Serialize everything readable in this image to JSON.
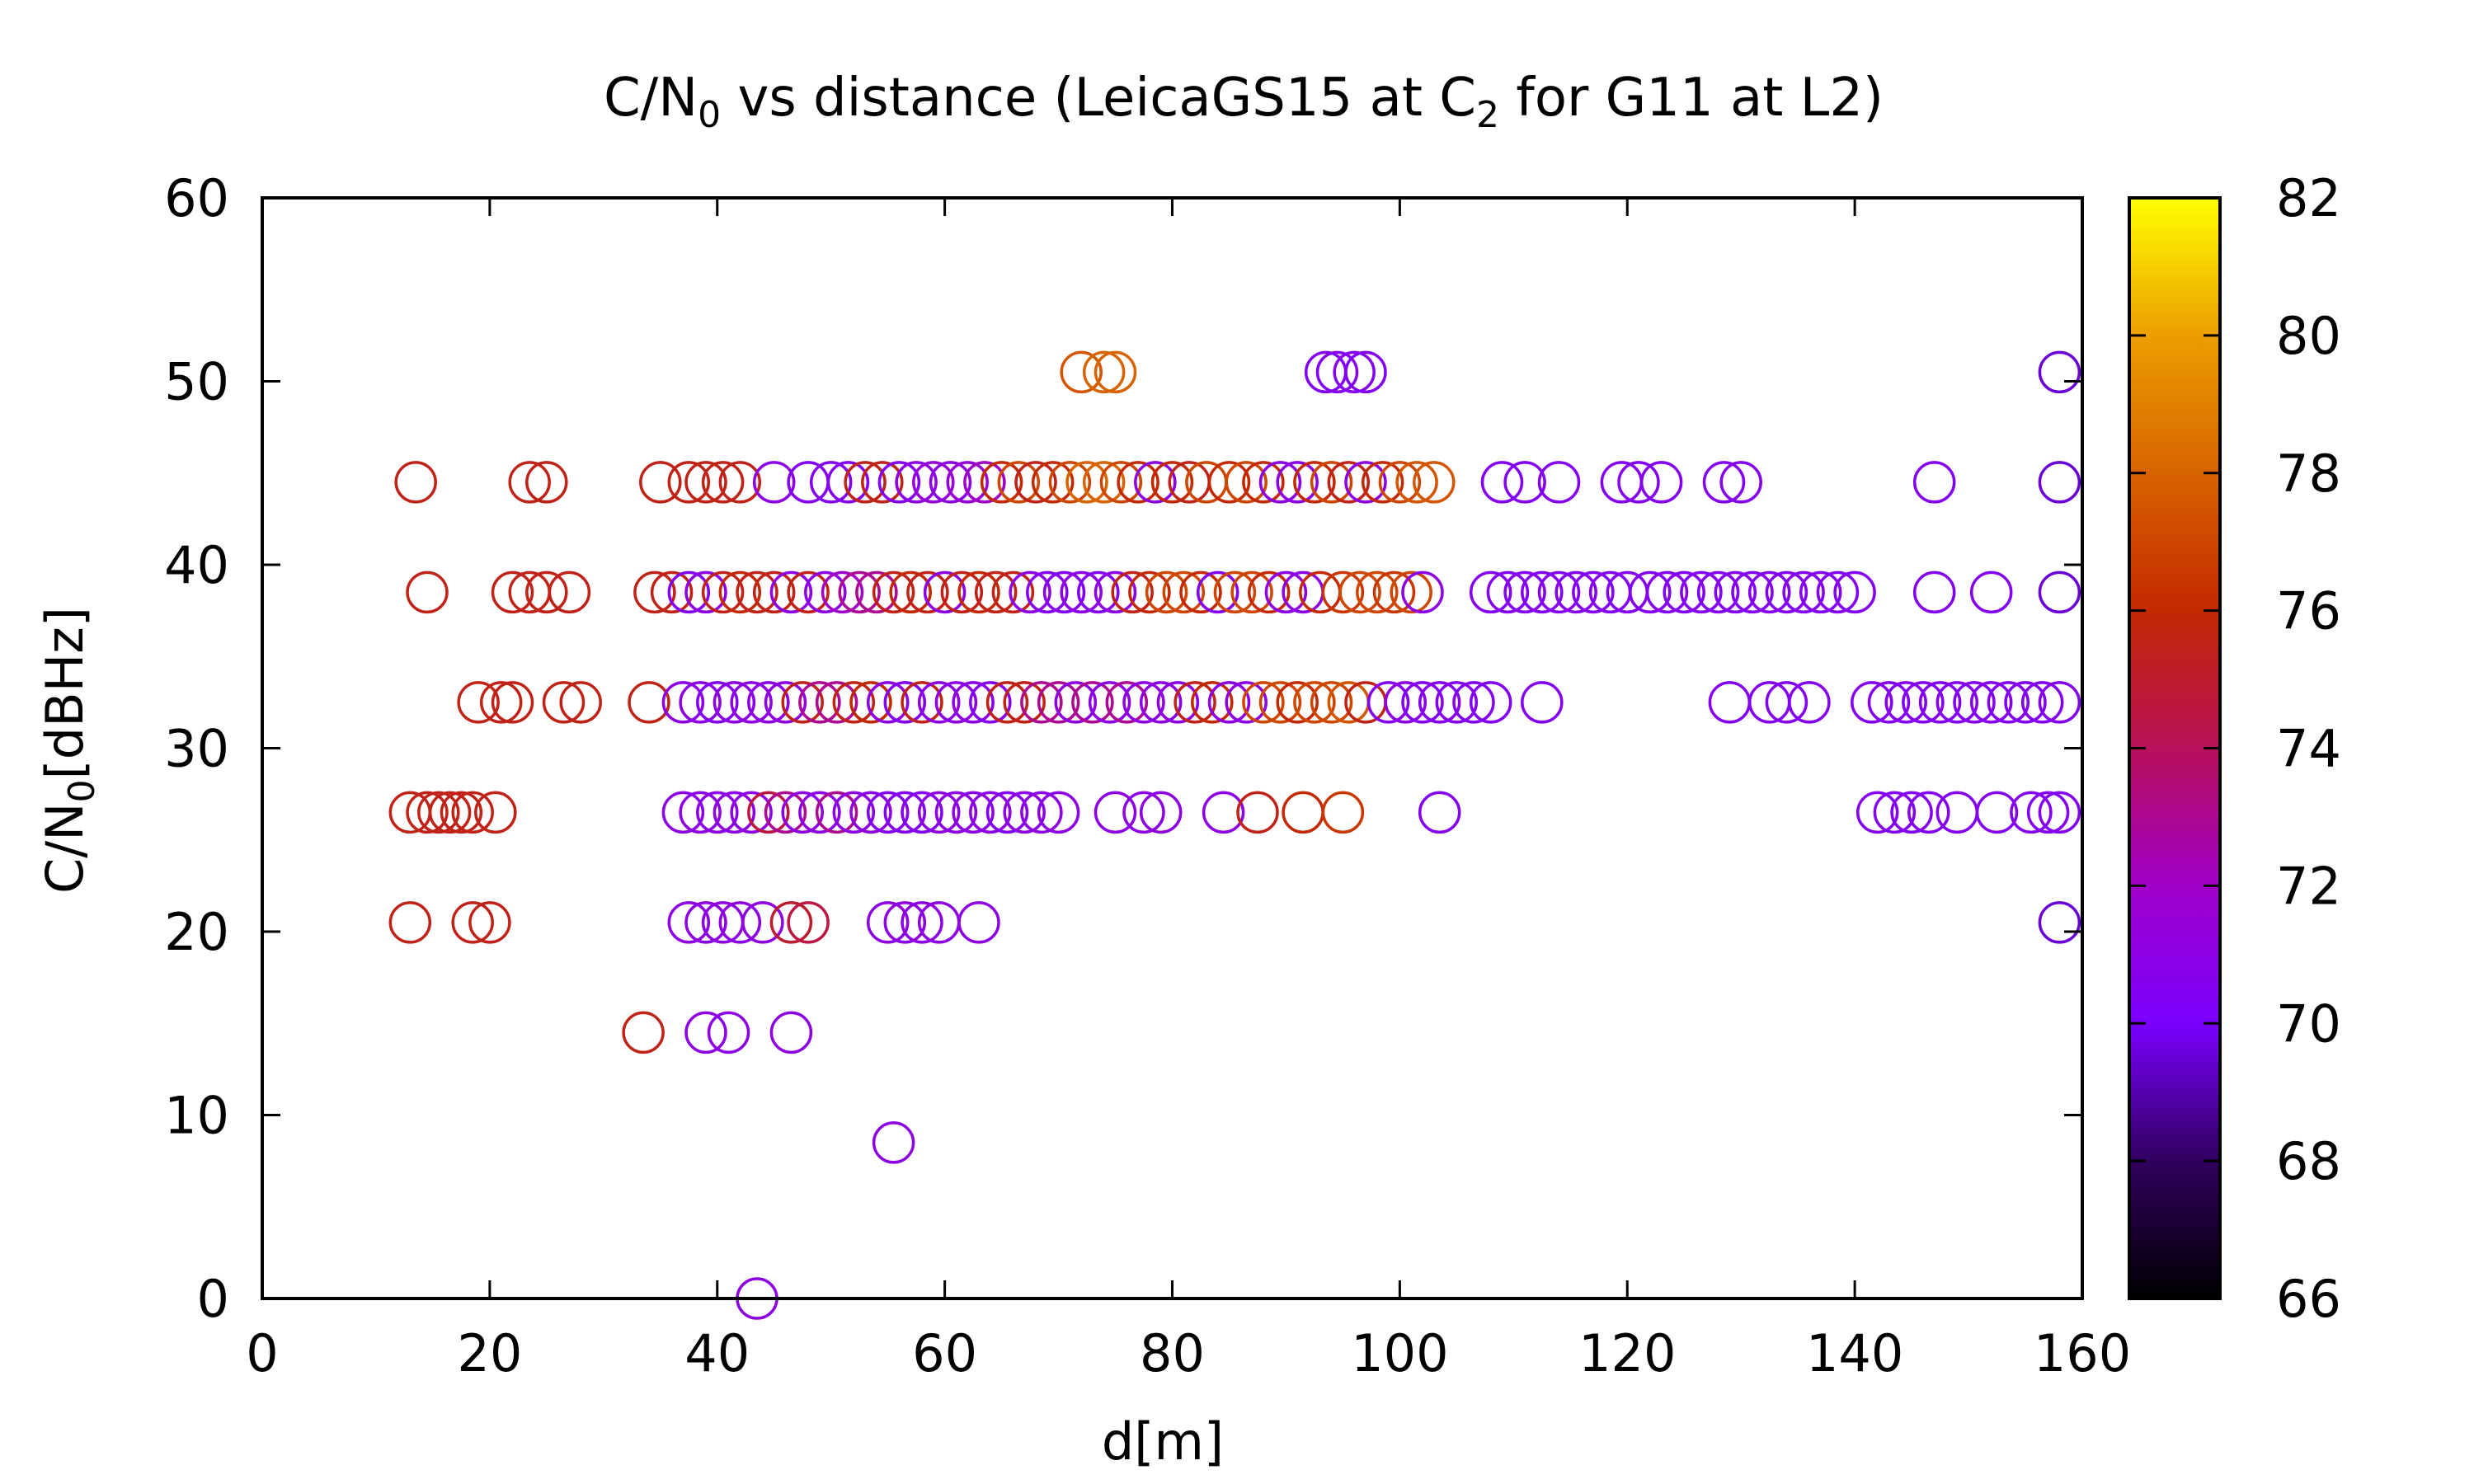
{
  "chart_data": {
    "type": "scatter",
    "title": {
      "pre": "C/N",
      "sub": "0",
      "mid": " vs distance (LeicaGS15 at C",
      "sub2": "2",
      "post": " for G11 at L2)"
    },
    "xlabel": "d[m]",
    "ylabel": {
      "pre": "C/N",
      "sub": "0",
      "post": "[dBHz]"
    },
    "xlim": [
      0,
      160
    ],
    "ylim": [
      0,
      60
    ],
    "xticks": [
      0,
      20,
      40,
      60,
      80,
      100,
      120,
      140,
      160
    ],
    "yticks": [
      0,
      10,
      20,
      30,
      40,
      50,
      60
    ],
    "colorbar": {
      "range": [
        66,
        82
      ],
      "ticks": [
        66,
        68,
        70,
        72,
        74,
        76,
        78,
        80,
        82
      ]
    },
    "marker": "open-circle",
    "grid": false,
    "points": [
      [
        13.5,
        44.5,
        75.5
      ],
      [
        23.5,
        44.5,
        75.5
      ],
      [
        25,
        44.5,
        75.5
      ],
      [
        35,
        44.5,
        75.5
      ],
      [
        37.5,
        44.5,
        75.5
      ],
      [
        39,
        44.5,
        75.5
      ],
      [
        40.5,
        44.5,
        75.5
      ],
      [
        42,
        44.5,
        75.5
      ],
      [
        45,
        44.5,
        71
      ],
      [
        48,
        44.5,
        70.5
      ],
      [
        50,
        44.5,
        70.5
      ],
      [
        51.5,
        44.5,
        70.5
      ],
      [
        53,
        44.5,
        75.5
      ],
      [
        54.5,
        44.5,
        75.5
      ],
      [
        56,
        44.5,
        70.5
      ],
      [
        57.5,
        44.5,
        71
      ],
      [
        59,
        44.5,
        71.5
      ],
      [
        60.5,
        44.5,
        71
      ],
      [
        62,
        44.5,
        71.5
      ],
      [
        63.5,
        44.5,
        72
      ],
      [
        65,
        44.5,
        76
      ],
      [
        66.5,
        44.5,
        77
      ],
      [
        68,
        44.5,
        75.5
      ],
      [
        69.5,
        44.5,
        76
      ],
      [
        71,
        44.5,
        77
      ],
      [
        72.5,
        44.5,
        78
      ],
      [
        74,
        44.5,
        78
      ],
      [
        75.5,
        44.5,
        77
      ],
      [
        77,
        44.5,
        76
      ],
      [
        78.5,
        44.5,
        71
      ],
      [
        80,
        44.5,
        76
      ],
      [
        81.5,
        44.5,
        75.5
      ],
      [
        83,
        44.5,
        77
      ],
      [
        85,
        44.5,
        76
      ],
      [
        86.5,
        44.5,
        77
      ],
      [
        88,
        44.5,
        76
      ],
      [
        89.5,
        44.5,
        71
      ],
      [
        91,
        44.5,
        71
      ],
      [
        92.5,
        44.5,
        76
      ],
      [
        94,
        44.5,
        77
      ],
      [
        95.5,
        44.5,
        75.5
      ],
      [
        97,
        44.5,
        71
      ],
      [
        98.5,
        44.5,
        76
      ],
      [
        100,
        44.5,
        77
      ],
      [
        101.5,
        44.5,
        77.5
      ],
      [
        103,
        44.5,
        77.5
      ],
      [
        109,
        44.5,
        70.5
      ],
      [
        111,
        44.5,
        70.5
      ],
      [
        114,
        44.5,
        70.5
      ],
      [
        119.5,
        44.5,
        70.5
      ],
      [
        121,
        44.5,
        70.5
      ],
      [
        123,
        44.5,
        70.5
      ],
      [
        128.5,
        44.5,
        70.5
      ],
      [
        130,
        44.5,
        70.5
      ],
      [
        147,
        44.5,
        70.5
      ],
      [
        158,
        44.5,
        69.5
      ],
      [
        14.5,
        38.5,
        75.5
      ],
      [
        22,
        38.5,
        75.5
      ],
      [
        23.5,
        38.5,
        75.5
      ],
      [
        25,
        38.5,
        75.5
      ],
      [
        27,
        38.5,
        75.5
      ],
      [
        34.5,
        38.5,
        75.5
      ],
      [
        36,
        38.5,
        75.5
      ],
      [
        37.5,
        38.5,
        70.5
      ],
      [
        39,
        38.5,
        71
      ],
      [
        40.5,
        38.5,
        75.5
      ],
      [
        42,
        38.5,
        76
      ],
      [
        43.5,
        38.5,
        75.5
      ],
      [
        45,
        38.5,
        75.5
      ],
      [
        46.5,
        38.5,
        71
      ],
      [
        48,
        38.5,
        75.5
      ],
      [
        49.5,
        38.5,
        71
      ],
      [
        51,
        38.5,
        72
      ],
      [
        52.5,
        38.5,
        73
      ],
      [
        54,
        38.5,
        73
      ],
      [
        55.5,
        38.5,
        75.5
      ],
      [
        57,
        38.5,
        76
      ],
      [
        58.5,
        38.5,
        75.5
      ],
      [
        60,
        38.5,
        71
      ],
      [
        61.5,
        38.5,
        75.5
      ],
      [
        63,
        38.5,
        76
      ],
      [
        64.5,
        38.5,
        75.5
      ],
      [
        66,
        38.5,
        75.5
      ],
      [
        67.5,
        38.5,
        71
      ],
      [
        69,
        38.5,
        70.5
      ],
      [
        70.5,
        38.5,
        70.5
      ],
      [
        72,
        38.5,
        71
      ],
      [
        73.5,
        38.5,
        70.5
      ],
      [
        75,
        38.5,
        71
      ],
      [
        76.5,
        38.5,
        75.5
      ],
      [
        78,
        38.5,
        76
      ],
      [
        79.5,
        38.5,
        77
      ],
      [
        81,
        38.5,
        77
      ],
      [
        82.5,
        38.5,
        76
      ],
      [
        84,
        38.5,
        70.5
      ],
      [
        85.5,
        38.5,
        77
      ],
      [
        87,
        38.5,
        77
      ],
      [
        88.5,
        38.5,
        76
      ],
      [
        90,
        38.5,
        71
      ],
      [
        91.5,
        38.5,
        71
      ],
      [
        93,
        38.5,
        76
      ],
      [
        95,
        38.5,
        76.5
      ],
      [
        96.5,
        38.5,
        77
      ],
      [
        98,
        38.5,
        77
      ],
      [
        99.5,
        38.5,
        76.5
      ],
      [
        101,
        38.5,
        77
      ],
      [
        102,
        38.5,
        71
      ],
      [
        108,
        38.5,
        70.5
      ],
      [
        109.5,
        38.5,
        70.5
      ],
      [
        111,
        38.5,
        70.5
      ],
      [
        112.5,
        38.5,
        70.5
      ],
      [
        114,
        38.5,
        70.5
      ],
      [
        115.5,
        38.5,
        70.5
      ],
      [
        117,
        38.5,
        70.5
      ],
      [
        118.5,
        38.5,
        70.5
      ],
      [
        120,
        38.5,
        70.5
      ],
      [
        122,
        38.5,
        70.5
      ],
      [
        123.5,
        38.5,
        70.5
      ],
      [
        125,
        38.5,
        70.5
      ],
      [
        126.5,
        38.5,
        70.5
      ],
      [
        128,
        38.5,
        70.5
      ],
      [
        129.5,
        38.5,
        70.5
      ],
      [
        131,
        38.5,
        70.5
      ],
      [
        132.5,
        38.5,
        70.5
      ],
      [
        134,
        38.5,
        70.5
      ],
      [
        135.5,
        38.5,
        70.5
      ],
      [
        137,
        38.5,
        70.5
      ],
      [
        138.5,
        38.5,
        70.5
      ],
      [
        140,
        38.5,
        70.5
      ],
      [
        147,
        38.5,
        70.5
      ],
      [
        152,
        38.5,
        70.5
      ],
      [
        158,
        38.5,
        69.5
      ],
      [
        19,
        32.5,
        75.5
      ],
      [
        21,
        32.5,
        75.5
      ],
      [
        22,
        32.5,
        75.5
      ],
      [
        26.5,
        32.5,
        75.5
      ],
      [
        28,
        32.5,
        75.5
      ],
      [
        34,
        32.5,
        75.5
      ],
      [
        37,
        32.5,
        71
      ],
      [
        38.5,
        32.5,
        71
      ],
      [
        40,
        32.5,
        70.5
      ],
      [
        41.5,
        32.5,
        71
      ],
      [
        43,
        32.5,
        71
      ],
      [
        44.5,
        32.5,
        71
      ],
      [
        46,
        32.5,
        71
      ],
      [
        47.5,
        32.5,
        75.5
      ],
      [
        49,
        32.5,
        73
      ],
      [
        50.5,
        32.5,
        73
      ],
      [
        52,
        32.5,
        75.5
      ],
      [
        53.5,
        32.5,
        76
      ],
      [
        55,
        32.5,
        71
      ],
      [
        56.5,
        32.5,
        70.5
      ],
      [
        58,
        32.5,
        75.5
      ],
      [
        59.5,
        32.5,
        71
      ],
      [
        61,
        32.5,
        71
      ],
      [
        62.5,
        32.5,
        71
      ],
      [
        64,
        32.5,
        70.5
      ],
      [
        65.5,
        32.5,
        75.5
      ],
      [
        67,
        32.5,
        75.5
      ],
      [
        68.5,
        32.5,
        73
      ],
      [
        70,
        32.5,
        73
      ],
      [
        71.5,
        32.5,
        71
      ],
      [
        73,
        32.5,
        73
      ],
      [
        74.5,
        32.5,
        71
      ],
      [
        76,
        32.5,
        73
      ],
      [
        77.5,
        32.5,
        71
      ],
      [
        79,
        32.5,
        71
      ],
      [
        80.5,
        32.5,
        71
      ],
      [
        82,
        32.5,
        75.5
      ],
      [
        83.5,
        32.5,
        76
      ],
      [
        85,
        32.5,
        71
      ],
      [
        86.5,
        32.5,
        71
      ],
      [
        88,
        32.5,
        77
      ],
      [
        89.5,
        32.5,
        77
      ],
      [
        91,
        32.5,
        76
      ],
      [
        92.5,
        32.5,
        77
      ],
      [
        94,
        32.5,
        77
      ],
      [
        95.5,
        32.5,
        77.5
      ],
      [
        97,
        32.5,
        75.5
      ],
      [
        99,
        32.5,
        70.5
      ],
      [
        100.5,
        32.5,
        71
      ],
      [
        102,
        32.5,
        70.5
      ],
      [
        103.5,
        32.5,
        70.5
      ],
      [
        105,
        32.5,
        70.5
      ],
      [
        106.5,
        32.5,
        70.5
      ],
      [
        108,
        32.5,
        70.5
      ],
      [
        112.5,
        32.5,
        70.5
      ],
      [
        129,
        32.5,
        70.5
      ],
      [
        132.5,
        32.5,
        70.5
      ],
      [
        134,
        32.5,
        70.5
      ],
      [
        136,
        32.5,
        70.5
      ],
      [
        141.5,
        32.5,
        70.5
      ],
      [
        143,
        32.5,
        70.5
      ],
      [
        144.5,
        32.5,
        70.5
      ],
      [
        146,
        32.5,
        70.5
      ],
      [
        147.5,
        32.5,
        70.5
      ],
      [
        149,
        32.5,
        70.5
      ],
      [
        150.5,
        32.5,
        70.5
      ],
      [
        152,
        32.5,
        70.5
      ],
      [
        153.5,
        32.5,
        70.5
      ],
      [
        155,
        32.5,
        70.5
      ],
      [
        156.5,
        32.5,
        70.5
      ],
      [
        158,
        32.5,
        70.5
      ],
      [
        13,
        26.5,
        75.5
      ],
      [
        14.5,
        26.5,
        75.5
      ],
      [
        15.5,
        26.5,
        75.5
      ],
      [
        16.5,
        26.5,
        75.5
      ],
      [
        17.5,
        26.5,
        75.5
      ],
      [
        18.5,
        26.5,
        75.5
      ],
      [
        20.5,
        26.5,
        75.5
      ],
      [
        37,
        26.5,
        71
      ],
      [
        38.5,
        26.5,
        71
      ],
      [
        40,
        26.5,
        71
      ],
      [
        41.5,
        26.5,
        71
      ],
      [
        43,
        26.5,
        71
      ],
      [
        44.5,
        26.5,
        74.5
      ],
      [
        46,
        26.5,
        73
      ],
      [
        47.5,
        26.5,
        71
      ],
      [
        49,
        26.5,
        71
      ],
      [
        50.5,
        26.5,
        73
      ],
      [
        52,
        26.5,
        71
      ],
      [
        53.5,
        26.5,
        71
      ],
      [
        55,
        26.5,
        70.5
      ],
      [
        56.5,
        26.5,
        70.5
      ],
      [
        58,
        26.5,
        70.5
      ],
      [
        59.5,
        26.5,
        71
      ],
      [
        61,
        26.5,
        71
      ],
      [
        62.5,
        26.5,
        71
      ],
      [
        64,
        26.5,
        71
      ],
      [
        65.5,
        26.5,
        70.5
      ],
      [
        67,
        26.5,
        71
      ],
      [
        68.5,
        26.5,
        71
      ],
      [
        70,
        26.5,
        71
      ],
      [
        75,
        26.5,
        71
      ],
      [
        77.5,
        26.5,
        71
      ],
      [
        79,
        26.5,
        71
      ],
      [
        84.5,
        26.5,
        71
      ],
      [
        87.5,
        26.5,
        75.5
      ],
      [
        91.5,
        26.5,
        76
      ],
      [
        95,
        26.5,
        76.5
      ],
      [
        103.5,
        26.5,
        70.5
      ],
      [
        142,
        26.5,
        70.5
      ],
      [
        143.5,
        26.5,
        70.5
      ],
      [
        145,
        26.5,
        70.5
      ],
      [
        146.5,
        26.5,
        70.5
      ],
      [
        149,
        26.5,
        70.5
      ],
      [
        152.5,
        26.5,
        70.5
      ],
      [
        155.5,
        26.5,
        70.5
      ],
      [
        157,
        26.5,
        70.5
      ],
      [
        158,
        26.5,
        70.5
      ],
      [
        13,
        20.5,
        75.5
      ],
      [
        18.5,
        20.5,
        75.5
      ],
      [
        20,
        20.5,
        75.5
      ],
      [
        37.5,
        20.5,
        71
      ],
      [
        39,
        20.5,
        71
      ],
      [
        40.5,
        20.5,
        71
      ],
      [
        42,
        20.5,
        71
      ],
      [
        44,
        20.5,
        71
      ],
      [
        46.5,
        20.5,
        75
      ],
      [
        48,
        20.5,
        74.5
      ],
      [
        55,
        20.5,
        71
      ],
      [
        56.5,
        20.5,
        71
      ],
      [
        58,
        20.5,
        71
      ],
      [
        59.5,
        20.5,
        71
      ],
      [
        63,
        20.5,
        71
      ],
      [
        158,
        20.5,
        69.5
      ],
      [
        33.5,
        14.5,
        75.5
      ],
      [
        39,
        14.5,
        71
      ],
      [
        41,
        14.5,
        71
      ],
      [
        46.5,
        14.5,
        71
      ],
      [
        55.5,
        8.5,
        71
      ],
      [
        43.5,
        0,
        71
      ],
      [
        72,
        50.5,
        77.5
      ],
      [
        74,
        50.5,
        78
      ],
      [
        75,
        50.5,
        78
      ],
      [
        93.5,
        50.5,
        70.5
      ],
      [
        94.5,
        50.5,
        70.5
      ],
      [
        96,
        50.5,
        70.5
      ],
      [
        97,
        50.5,
        70.5
      ],
      [
        158,
        50.5,
        69.5
      ]
    ]
  }
}
